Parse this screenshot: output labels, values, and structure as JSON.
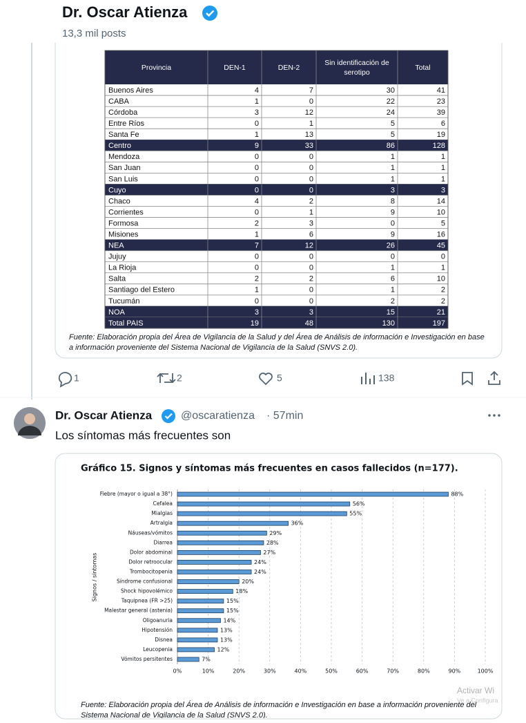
{
  "header": {
    "name": "Dr. Oscar Atienza",
    "posts": "13,3 mil posts"
  },
  "post1": {
    "table": {
      "columns": [
        "Provincia",
        "DEN-1",
        "DEN-2",
        "Sin identificación de serotipo",
        "Total"
      ],
      "rows": [
        [
          "Buenos Aires",
          4,
          7,
          30,
          41
        ],
        [
          "CABA",
          1,
          0,
          22,
          23
        ],
        [
          "Córdoba",
          3,
          12,
          24,
          39
        ],
        [
          "Entre Ríos",
          0,
          1,
          5,
          6
        ],
        [
          "Santa Fe",
          1,
          13,
          5,
          19
        ],
        [
          "Centro",
          9,
          33,
          86,
          128
        ],
        [
          "Mendoza",
          0,
          0,
          1,
          1
        ],
        [
          "San Juan",
          0,
          0,
          1,
          1
        ],
        [
          "San Luis",
          0,
          0,
          1,
          1
        ],
        [
          "Cuyo",
          0,
          0,
          3,
          3
        ],
        [
          "Chaco",
          4,
          2,
          8,
          14
        ],
        [
          "Corrientes",
          0,
          1,
          9,
          10
        ],
        [
          "Formosa",
          2,
          3,
          0,
          5
        ],
        [
          "Misiones",
          1,
          6,
          9,
          16
        ],
        [
          "NEA",
          7,
          12,
          26,
          45
        ],
        [
          "Jujuy",
          0,
          0,
          0,
          0
        ],
        [
          "La Rioja",
          0,
          0,
          1,
          1
        ],
        [
          "Salta",
          2,
          2,
          6,
          10
        ],
        [
          "Santiago del Estero",
          1,
          0,
          1,
          2
        ],
        [
          "Tucumán",
          0,
          0,
          2,
          2
        ],
        [
          "NOA",
          3,
          3,
          15,
          21
        ],
        [
          "Total PAIS",
          19,
          48,
          130,
          197
        ]
      ]
    },
    "source": [
      "Fuente: Elaboración propia del Área de Vigilancia de la Salud y del Área de Análisis de información e Investigación en base",
      "a información proveniente del Sistema Nacional de Vigilancia de la Salud (SNVS 2.0)."
    ],
    "actions": {
      "replies": "1",
      "reposts": "2",
      "likes": "5",
      "views": "138"
    }
  },
  "post2": {
    "author": "Dr. Oscar Atienza",
    "handle": "@oscaratienza",
    "time": "· 57min",
    "text": "Los síntomas más frecuentes son",
    "source": [
      "Fuente: Elaboración propia del Área de Análisis de información e Investigación en base a información proveniente del",
      "Sistema Nacional de Vigilancia de la Salud (SNVS 2.0)."
    ]
  },
  "chart_data": {
    "type": "bar",
    "orientation": "horizontal",
    "title": "Gráfico 15. Signos y síntomas más frecuentes en casos fallecidos (n=177).",
    "y_label": "Signos / síntomas",
    "categories": [
      "Fiebre (mayor o igual a 38°)",
      "Cefalea",
      "Mialgias",
      "Artralgia",
      "Náuseas/vómitos",
      "Diarrea",
      "Dolor abdominal",
      "Dolor retroocular",
      "Trombocitopenia",
      "Síndrome confusional",
      "Shock hipovolémico",
      "Taquipnea (FR >25)",
      "Malestar general (astenia)",
      "Oligoanuria",
      "Hipotensión",
      "Disnea",
      "Leucopenia",
      "Vómitos persitentes"
    ],
    "values": [
      88,
      56,
      55,
      36,
      29,
      28,
      27,
      24,
      24,
      20,
      18,
      15,
      15,
      14,
      13,
      13,
      12,
      7
    ],
    "value_labels": [
      "88%",
      "56%",
      "55%",
      "36%",
      "29%",
      "28%",
      "27%",
      "24%",
      "24%",
      "20%",
      "18%",
      "15%",
      "15%",
      "14%",
      "13%",
      "13%",
      "12%",
      "7%"
    ],
    "color": "#5b9bd5",
    "xlim": [
      0,
      100
    ],
    "xticks": [
      {
        "value": 0,
        "label": "0%"
      },
      {
        "value": 10,
        "label": "10%"
      },
      {
        "value": 20,
        "label": "20%"
      },
      {
        "value": 30,
        "label": "30%"
      },
      {
        "value": 40,
        "label": "40%"
      },
      {
        "value": 50,
        "label": "50%"
      },
      {
        "value": 60,
        "label": "60%"
      },
      {
        "value": 70,
        "label": "70%"
      },
      {
        "value": 80,
        "label": "80%"
      },
      {
        "value": 90,
        "label": "90%"
      },
      {
        "value": 100,
        "label": "100%"
      }
    ],
    "grid": true
  },
  "watermark": [
    "Activar Wi",
    "Ve a Configura"
  ]
}
